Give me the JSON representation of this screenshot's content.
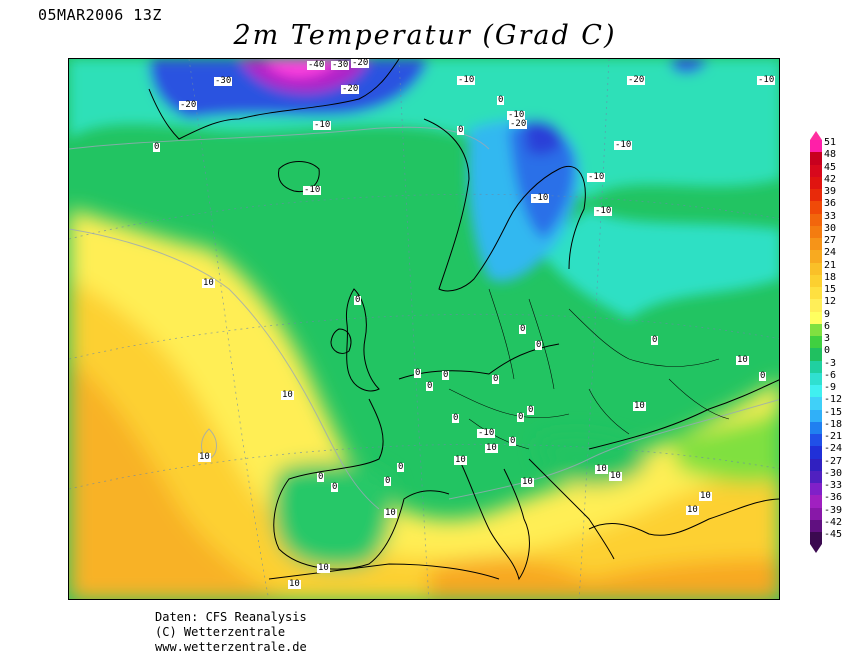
{
  "header": {
    "date": "05MAR2006 13Z",
    "title": "2m Temperatur (Grad C)"
  },
  "credits": {
    "line1": "Daten: CFS Reanalysis",
    "line2": "(C) Wetterzentrale",
    "line3": "www.wetterzentrale.de"
  },
  "scale": {
    "ticks": [
      "51",
      "48",
      "45",
      "42",
      "39",
      "36",
      "33",
      "30",
      "27",
      "24",
      "21",
      "18",
      "15",
      "12",
      "9",
      "6",
      "3",
      "0",
      "-3",
      "-6",
      "-9",
      "-12",
      "-15",
      "-18",
      "-21",
      "-24",
      "-27",
      "-30",
      "-33",
      "-36",
      "-39",
      "-42",
      "-45"
    ],
    "colors": [
      "#ff1fa8",
      "#c8001e",
      "#d8081c",
      "#e01410",
      "#e82a0a",
      "#f04a08",
      "#f2660c",
      "#f47c10",
      "#f69418",
      "#f8aa20",
      "#fac028",
      "#fcd030",
      "#fee040",
      "#ffee58",
      "#ffff60",
      "#80e040",
      "#40d040",
      "#20c060",
      "#20d0a0",
      "#30e0d0",
      "#40f0f0",
      "#40d0f8",
      "#30b0f8",
      "#2080f0",
      "#2050e8",
      "#2030d8",
      "#3020c0",
      "#5020c0",
      "#8020c8",
      "#a020c0",
      "#8818a8",
      "#601080",
      "#3b0a50"
    ]
  },
  "contour_labels": [
    "-30",
    "-20",
    "-10",
    "0",
    "10",
    "-40"
  ]
}
